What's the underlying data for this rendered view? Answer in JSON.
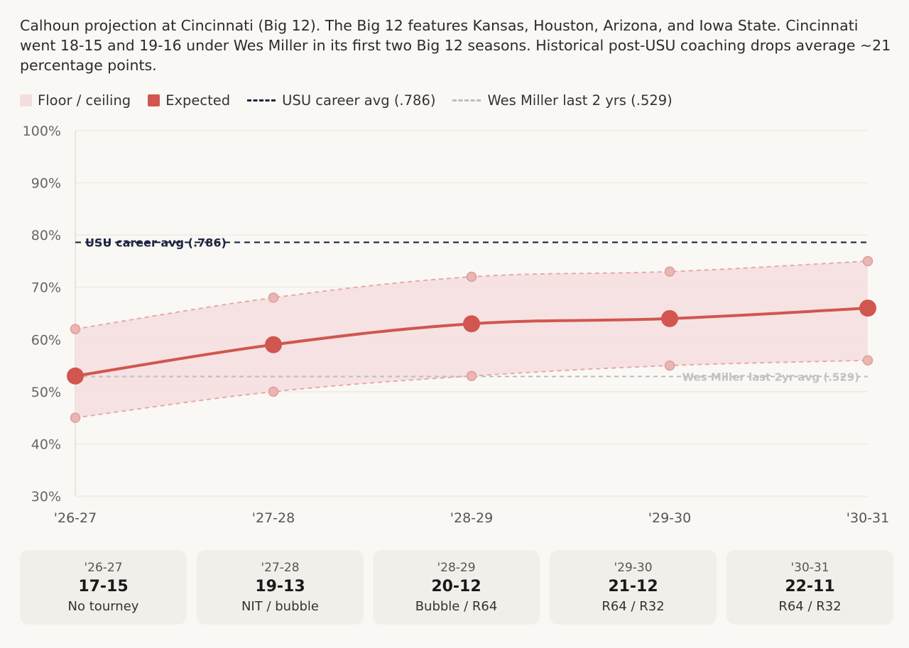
{
  "caption": "Calhoun projection at Cincinnati (Big 12). The Big 12 features Kansas, Houston, Arizona, and Iowa State. Cincinnati went 18-15 and 19-16 under Wes Miller in its first two Big 12 seasons. Historical post-USU coaching drops average ~21 percentage points.",
  "legend": [
    {
      "label": "Floor / ceiling",
      "kind": "band",
      "color": "#f5dede"
    },
    {
      "label": "Expected",
      "kind": "marker",
      "color": "#d0564f"
    },
    {
      "label": "USU career avg (.786)",
      "kind": "dash",
      "color": "#1c2540"
    },
    {
      "label": "Wes Miller last 2 yrs (.529)",
      "kind": "dash",
      "color": "#bdbdbd"
    }
  ],
  "colors": {
    "expected": "#d0564f",
    "band": "#f5dede",
    "band_edge": "#e8a9a7",
    "usu_line": "#1c2540",
    "miller_line": "#bdbdbd",
    "grid": "#e8e5e0"
  },
  "chart_data": {
    "type": "line",
    "x": [
      "'26-27",
      "'27-28",
      "'28-29",
      "'29-30",
      "'30-31"
    ],
    "series": [
      {
        "name": "Expected",
        "values": [
          53,
          59,
          63,
          64,
          66
        ]
      },
      {
        "name": "Floor",
        "values": [
          45,
          50,
          53,
          55,
          56
        ]
      },
      {
        "name": "Ceiling",
        "values": [
          62,
          68,
          72,
          73,
          75
        ]
      }
    ],
    "reference_lines": [
      {
        "value": 78.6,
        "label": "USU career avg (.786)"
      },
      {
        "value": 52.9,
        "label": "Wes Miller last 2yr avg (.529)"
      }
    ],
    "ylim": [
      30,
      100
    ],
    "yticks": [
      "30%",
      "40%",
      "50%",
      "60%",
      "70%",
      "80%",
      "90%",
      "100%"
    ],
    "grid": true,
    "legend_position": "top-left"
  },
  "cards": [
    {
      "season": "'26-27",
      "record": "17-15",
      "outcome": "No tourney"
    },
    {
      "season": "'27-28",
      "record": "19-13",
      "outcome": "NIT / bubble"
    },
    {
      "season": "'28-29",
      "record": "20-12",
      "outcome": "Bubble / R64"
    },
    {
      "season": "'29-30",
      "record": "21-12",
      "outcome": "R64 / R32"
    },
    {
      "season": "'30-31",
      "record": "22-11",
      "outcome": "R64 / R32"
    }
  ]
}
